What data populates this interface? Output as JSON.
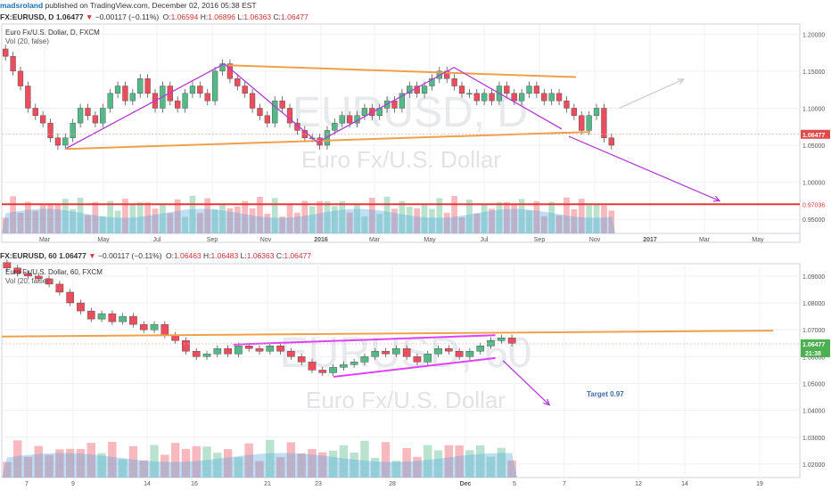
{
  "header": {
    "author": "madsroland",
    "published_text": "published on TradingView.com, December 02, 2016 05:38 EST",
    "top_quote": {
      "symbol": "FX:EURUSD, D",
      "price": "1.06477",
      "change": "−0.00117 (−0.11%)",
      "o": "1.06594",
      "h": "1.06896",
      "l": "1.06363",
      "c": "1.06477"
    },
    "bottom_quote": {
      "symbol": "FX:EURUSD, 60",
      "price": "1.06477",
      "change": "−0.00117 (−0.11%)",
      "o": "1.06463",
      "h": "1.06483",
      "l": "1.06363",
      "c": "1.06477"
    },
    "ohlc_labels": {
      "o": "O:",
      "h": "H:",
      "l": "L:",
      "c": "C:"
    }
  },
  "chart_data": [
    {
      "type": "candlestick",
      "panel": "daily",
      "title": "Euro Fx/U.S. Dollar, D, FXCM",
      "indicator": "Vol (20, false)",
      "watermark_symbol": "EURUSD, D",
      "watermark_name": "Euro Fx/U.S. Dollar",
      "y_ticks": [
        "1.20000",
        "1.15000",
        "1.10000",
        "1.05000",
        "1.00000",
        "0.95000"
      ],
      "y_tick_values": [
        1.2,
        1.15,
        1.1,
        1.05,
        1.0,
        0.95
      ],
      "ylim": [
        0.931,
        1.2136
      ],
      "x_ticks": [
        "Mar",
        "May",
        "Jul",
        "Sep",
        "Nov",
        "2016",
        "Mar",
        "May",
        "Jul",
        "Sep",
        "Nov",
        "2017",
        "Mar",
        "May"
      ],
      "current_price_label": "1.06477",
      "current_price": 1.06477,
      "target_label": "0.97036",
      "target_price": 0.97036,
      "close_series": [
        1.17,
        1.15,
        1.13,
        1.1,
        1.09,
        1.08,
        1.06,
        1.05,
        1.06,
        1.08,
        1.1,
        1.09,
        1.08,
        1.1,
        1.12,
        1.13,
        1.11,
        1.12,
        1.14,
        1.12,
        1.1,
        1.13,
        1.11,
        1.1,
        1.12,
        1.13,
        1.12,
        1.11,
        1.15,
        1.16,
        1.14,
        1.13,
        1.12,
        1.1,
        1.09,
        1.08,
        1.11,
        1.1,
        1.08,
        1.07,
        1.06,
        1.06,
        1.05,
        1.07,
        1.08,
        1.09,
        1.08,
        1.09,
        1.1,
        1.09,
        1.1,
        1.11,
        1.1,
        1.12,
        1.13,
        1.12,
        1.13,
        1.14,
        1.15,
        1.14,
        1.13,
        1.12,
        1.12,
        1.11,
        1.12,
        1.11,
        1.13,
        1.12,
        1.11,
        1.12,
        1.13,
        1.12,
        1.11,
        1.12,
        1.11,
        1.1,
        1.09,
        1.07,
        1.09,
        1.1,
        1.06,
        1.05
      ],
      "annotations": [
        {
          "kind": "trendline",
          "color": "#f0a04b",
          "points": [
            [
              0.09,
              1.045
            ],
            [
              0.82,
              1.068
            ]
          ]
        },
        {
          "kind": "trendline",
          "color": "#f0a04b",
          "points": [
            [
              0.315,
              1.158
            ],
            [
              0.8,
              1.142
            ]
          ]
        },
        {
          "kind": "path",
          "color": "#b23cd6",
          "points": [
            [
              0.09,
              1.046
            ],
            [
              0.31,
              1.16
            ],
            [
              0.44,
              1.054
            ],
            [
              0.63,
              1.155
            ],
            [
              0.78,
              1.072
            ]
          ]
        },
        {
          "kind": "arrow",
          "color": "#b23cd6",
          "points": [
            [
              0.79,
              1.062
            ],
            [
              1.0,
              0.975
            ]
          ]
        },
        {
          "kind": "arrow",
          "color": "#cccccc",
          "points": [
            [
              0.86,
              1.1
            ],
            [
              0.95,
              1.139
            ]
          ]
        },
        {
          "kind": "hline",
          "color": "#e53935",
          "value": 0.97036
        }
      ]
    },
    {
      "type": "candlestick",
      "panel": "hourly",
      "title": "Euro Fx/U.S. Dollar, 60, FXCM",
      "indicator": "Vol (20, false)",
      "watermark_symbol": "EURUSD, 60",
      "watermark_name": "Euro Fx/U.S. Dollar",
      "y_ticks": [
        "1.09000",
        "1.08000",
        "1.07000",
        "1.06000",
        "1.05000",
        "1.04000",
        "1.03000",
        "1.02000"
      ],
      "y_tick_values": [
        1.09,
        1.08,
        1.07,
        1.06,
        1.05,
        1.04,
        1.03,
        1.02
      ],
      "ylim": [
        1.015,
        1.0946
      ],
      "x_ticks": [
        "7",
        "9",
        "14",
        "16",
        "21",
        "23",
        "28",
        "Dec",
        "5",
        "7",
        "12",
        "14",
        "19"
      ],
      "current_price_label": "1.06477",
      "current_price": 1.06477,
      "countdown_label": "21:38",
      "target_text": "Target 0.97",
      "close_series": [
        1.093,
        1.091,
        1.09,
        1.089,
        1.087,
        1.084,
        1.08,
        1.077,
        1.074,
        1.076,
        1.073,
        1.075,
        1.072,
        1.07,
        1.072,
        1.068,
        1.066,
        1.062,
        1.06,
        1.061,
        1.063,
        1.061,
        1.064,
        1.063,
        1.062,
        1.064,
        1.062,
        1.06,
        1.058,
        1.055,
        1.054,
        1.056,
        1.057,
        1.058,
        1.06,
        1.062,
        1.061,
        1.063,
        1.06,
        1.058,
        1.061,
        1.063,
        1.062,
        1.06,
        1.062,
        1.064,
        1.066,
        1.067,
        1.065
      ],
      "annotations": [
        {
          "kind": "trendline",
          "color": "#f0a04b",
          "points": [
            [
              0.0,
              1.0675
            ],
            [
              1.0,
              1.0697
            ]
          ]
        },
        {
          "kind": "trendline",
          "color": "#e040fb",
          "points": [
            [
              0.3,
              1.0645
            ],
            [
              0.64,
              1.068
            ]
          ]
        },
        {
          "kind": "trendline",
          "color": "#e040fb",
          "points": [
            [
              0.43,
              1.0525
            ],
            [
              0.64,
              1.0595
            ]
          ]
        },
        {
          "kind": "arrow",
          "color": "#b23cd6",
          "points": [
            [
              0.65,
              1.0585
            ],
            [
              0.71,
              1.042
            ]
          ]
        }
      ]
    }
  ]
}
